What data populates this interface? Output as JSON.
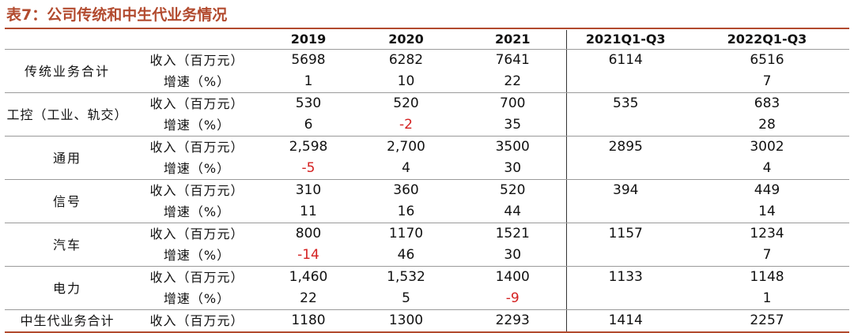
{
  "title": "表7：公司传统和中生代业务情况",
  "columns": [
    "2019",
    "2020",
    "2021",
    "2021Q1-Q3",
    "2022Q1-Q3"
  ],
  "groups": [
    {
      "name": "传统业务合计",
      "rows": [
        {
          "metric": "收入（百万元）",
          "values": [
            "5698",
            "6282",
            "7641",
            "6114",
            "6516"
          ]
        },
        {
          "metric": "增速（%）",
          "values": [
            "1",
            "10",
            "22",
            "",
            "7"
          ]
        }
      ]
    },
    {
      "name": "工控（工业、轨交）",
      "rows": [
        {
          "metric": "收入（百万元）",
          "values": [
            "530",
            "520",
            "700",
            "535",
            "683"
          ]
        },
        {
          "metric": "增速（%）",
          "values": [
            "6",
            "-2",
            "35",
            "",
            "28"
          ]
        }
      ]
    },
    {
      "name": "通用",
      "rows": [
        {
          "metric": "收入（百万元）",
          "values": [
            "2,598",
            "2,700",
            "3500",
            "2895",
            "3002"
          ]
        },
        {
          "metric": "增速（%）",
          "values": [
            "-5",
            "4",
            "30",
            "",
            "4"
          ]
        }
      ]
    },
    {
      "name": "信号",
      "rows": [
        {
          "metric": "收入（百万元）",
          "values": [
            "310",
            "360",
            "520",
            "394",
            "449"
          ]
        },
        {
          "metric": "增速（%）",
          "values": [
            "11",
            "16",
            "44",
            "",
            "14"
          ]
        }
      ]
    },
    {
      "name": "汽车",
      "rows": [
        {
          "metric": "收入（百万元）",
          "values": [
            "800",
            "1170",
            "1521",
            "1157",
            "1234"
          ]
        },
        {
          "metric": "增速（%）",
          "values": [
            "-14",
            "46",
            "30",
            "",
            "7"
          ]
        }
      ]
    },
    {
      "name": "电力",
      "rows": [
        {
          "metric": "收入（百万元）",
          "values": [
            "1,460",
            "1,532",
            "1400",
            "1133",
            "1148"
          ]
        },
        {
          "metric": "增速（%）",
          "values": [
            "22",
            "5",
            "-9",
            "",
            "1"
          ]
        }
      ]
    },
    {
      "name": "中生代业务合计",
      "rows": [
        {
          "metric": "收入（百万元）",
          "values": [
            "1180",
            "1300",
            "2293",
            "1414",
            "2257"
          ]
        }
      ]
    }
  ],
  "colors": {
    "accent": "#b24a2e",
    "negative": "#d42020"
  }
}
